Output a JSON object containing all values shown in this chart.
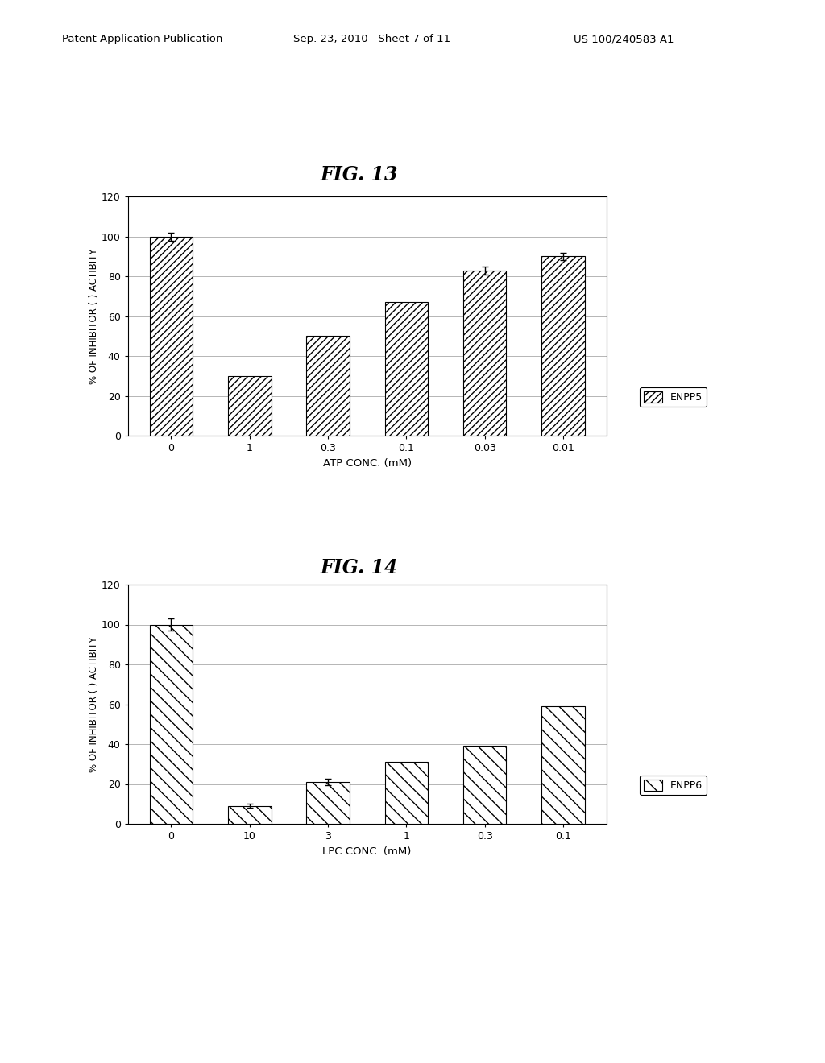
{
  "fig13": {
    "title": "FIG. 13",
    "categories": [
      "0",
      "1",
      "0.3",
      "0.1",
      "0.03",
      "0.01"
    ],
    "values": [
      100,
      30,
      50,
      67,
      83,
      90
    ],
    "error_bars": [
      2.0,
      0,
      0,
      0,
      2.0,
      2.0
    ],
    "has_error": [
      true,
      false,
      false,
      false,
      true,
      true
    ],
    "xlabel": "ATP CONC. (mM)",
    "ylabel": "% OF INHIBITOR (-) ACTIBITY",
    "ylim": [
      0,
      120
    ],
    "yticks": [
      0,
      20,
      40,
      60,
      80,
      100,
      120
    ],
    "legend_label": "ENPP5",
    "hatch": "////"
  },
  "fig14": {
    "title": "FIG. 14",
    "categories": [
      "0",
      "10",
      "3",
      "1",
      "0.3",
      "0.1"
    ],
    "values": [
      100,
      9,
      21,
      31,
      39,
      59
    ],
    "error_bars": [
      3.0,
      1.0,
      1.5,
      0,
      0,
      0
    ],
    "has_error": [
      true,
      true,
      true,
      false,
      false,
      false
    ],
    "xlabel": "LPC CONC. (mM)",
    "ylabel": "% OF INHIBITOR (-) ACTIBITY",
    "ylim": [
      0,
      120
    ],
    "yticks": [
      0,
      20,
      40,
      60,
      80,
      100,
      120
    ],
    "legend_label": "ENPP6",
    "hatch": "\\\\"
  },
  "header_left": "Patent Application Publication",
  "header_center": "Sep. 23, 2010   Sheet 7 of 11",
  "header_right": "US 100/240583 A1",
  "background_color": "#ffffff",
  "bar_color": "#ffffff",
  "bar_edge_color": "#000000"
}
